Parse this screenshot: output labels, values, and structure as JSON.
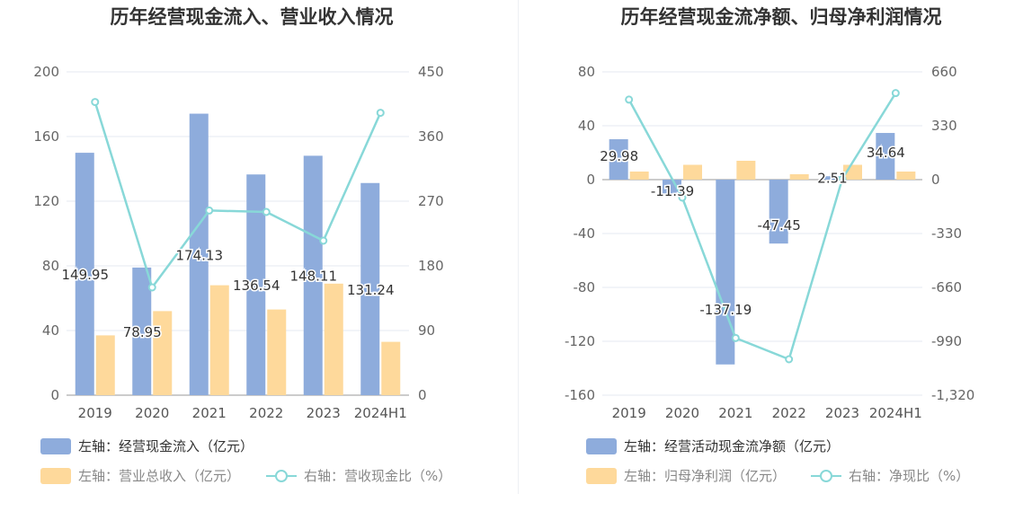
{
  "chart_data": [
    {
      "type": "bar",
      "title": "历年经营现金流入、营业收入情况",
      "categories": [
        "2019",
        "2020",
        "2021",
        "2022",
        "2023",
        "2024H1"
      ],
      "left_axis": {
        "ylim": [
          0,
          200
        ],
        "ticks": [
          0,
          40,
          80,
          120,
          160,
          200
        ]
      },
      "right_axis": {
        "ylim": [
          0,
          450
        ],
        "ticks": [
          0,
          90,
          180,
          270,
          360,
          450
        ]
      },
      "series": [
        {
          "name": "左轴：经营现金流入（亿元）",
          "kind": "bar",
          "axis": "left",
          "color": "#8eacdc",
          "values": [
            149.95,
            78.95,
            174.13,
            136.54,
            148.11,
            131.24
          ],
          "labels": [
            "149.95",
            "78.95",
            "174.13",
            "136.54",
            "148.11",
            "131.24"
          ]
        },
        {
          "name": "左轴：营业总收入（亿元）",
          "kind": "bar",
          "axis": "left",
          "color": "#fed99b",
          "values": [
            37,
            52,
            68,
            53,
            69,
            33
          ]
        },
        {
          "name": "右轴：营收现金比（%）",
          "kind": "line",
          "axis": "right",
          "color": "#88d8d8",
          "values": [
            408,
            150,
            257,
            255,
            215,
            393
          ]
        }
      ]
    },
    {
      "type": "bar",
      "title": "历年经营现金流净额、归母净利润情况",
      "categories": [
        "2019",
        "2020",
        "2021",
        "2022",
        "2023",
        "2024H1"
      ],
      "left_axis": {
        "ylim": [
          -160,
          80
        ],
        "ticks": [
          -160,
          -120,
          -80,
          -40,
          0,
          40,
          80
        ]
      },
      "right_axis": {
        "ylim": [
          -1320,
          660
        ],
        "ticks": [
          -1320,
          -990,
          -660,
          -330,
          0,
          330,
          660
        ],
        "tick_labels": [
          "-1,320",
          "-990",
          "-660",
          "-330",
          "0",
          "330",
          "660"
        ]
      },
      "series": [
        {
          "name": "左轴：经营活动现金流净额（亿元）",
          "kind": "bar",
          "axis": "left",
          "color": "#8eacdc",
          "values": [
            29.98,
            -11.39,
            -137.19,
            -47.45,
            2.51,
            34.64
          ],
          "labels": [
            "29.98",
            "-11.39",
            "-137.19",
            "-47.45",
            "2.51",
            "34.64"
          ]
        },
        {
          "name": "左轴：归母净利润（亿元）",
          "kind": "bar",
          "axis": "left",
          "color": "#fed99b",
          "values": [
            6,
            11,
            14,
            4,
            11,
            6
          ]
        },
        {
          "name": "右轴：净现比（%）",
          "kind": "line",
          "axis": "right",
          "color": "#88d8d8",
          "values": [
            490,
            -110,
            -970,
            -1100,
            5,
            530
          ]
        }
      ]
    }
  ]
}
